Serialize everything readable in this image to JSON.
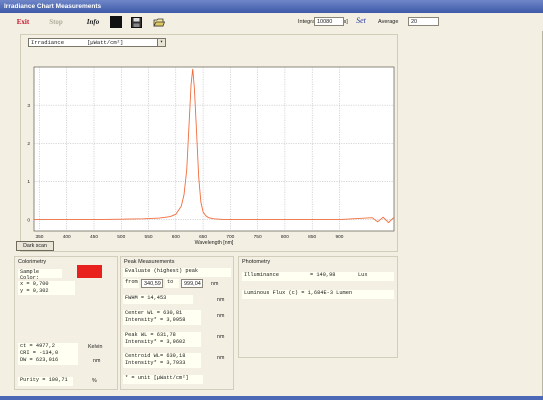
{
  "window": {
    "title": "Irradiance Chart Measurements"
  },
  "toolbar": {
    "exit_label": "Exit",
    "blank_label": "Stop",
    "info_label": "Info",
    "integration_label": "Integration time [ms]",
    "integration_value": "10080",
    "set_label": "Set",
    "average_label": "Average",
    "average_value": "20"
  },
  "chart_header": {
    "quantity": "Irradiance",
    "unit": "[µWatt/cm²]"
  },
  "dark_scan_label": "Dark scan",
  "chart_data": {
    "type": "line",
    "title": "",
    "xlabel": "Wavelength [nm]",
    "ylabel": "",
    "xlim": [
      340,
      1000
    ],
    "ylim": [
      -0.3,
      4.0
    ],
    "xticks": [
      350,
      400,
      450,
      500,
      550,
      600,
      650,
      700,
      750,
      800,
      850,
      900
    ],
    "yticks": [
      0,
      1,
      2,
      3
    ],
    "grid": true,
    "series": [
      {
        "color": "#f26d3d",
        "x": [
          340,
          400,
          450,
          500,
          540,
          570,
          590,
          600,
          610,
          615,
          620,
          625,
          628,
          631,
          634,
          638,
          642,
          646,
          650,
          655,
          660,
          670,
          690,
          730,
          800,
          900,
          960,
          970,
          980,
          990,
          1000
        ],
        "y": [
          0.0,
          0.0,
          0.0,
          0.01,
          0.02,
          0.04,
          0.08,
          0.14,
          0.35,
          0.65,
          1.3,
          2.7,
          3.55,
          3.95,
          3.45,
          2.3,
          1.1,
          0.45,
          0.2,
          0.1,
          0.05,
          0.02,
          0.0,
          0.0,
          0.0,
          0.0,
          0.05,
          -0.06,
          0.06,
          -0.08,
          0.06
        ]
      }
    ]
  },
  "colorimetry": {
    "title": "Colorimetry",
    "sample_color_label": "Sample Color:",
    "sample_color_hex": "#e8211e",
    "x_label": "x = 0,700",
    "y_label": "y = 0,302",
    "ct_label": "ct = 4977,2",
    "ct_unit": "Kelvin",
    "cri_label": "CRI = -134,0",
    "dw_label": "DW = 623,016",
    "dw_unit": "nm",
    "purity_label": "Purity = 100,71",
    "purity_unit": "%"
  },
  "peak": {
    "title": "Peak Measurements",
    "evaluate_label": "Evaluate (highest) peak",
    "from_label": "from",
    "from_value": "340,59",
    "to_label": "to",
    "to_value": "999,04",
    "nm": "nm",
    "fwhm_label": "FWHM = 14,453",
    "center_wl": "Center WL = 630,81",
    "center_int": "Intensity* = 3,9958",
    "peak_wl": "Peak WL = 631,78",
    "peak_int": "Intensity* = 3,9602",
    "centroid_wl": "Centroid WL= 630,18",
    "centroid_int": "Intensity* = 3,7933",
    "footnote": "* = unit [µWatt/cm²]"
  },
  "photometry": {
    "title": "Photometry",
    "illuminance_label": "Illuminance",
    "illuminance_value": "= 140,98",
    "illuminance_unit": "Lux",
    "flux_label": "Luminous Flux (c) = 1,684E-3 Lumen"
  }
}
